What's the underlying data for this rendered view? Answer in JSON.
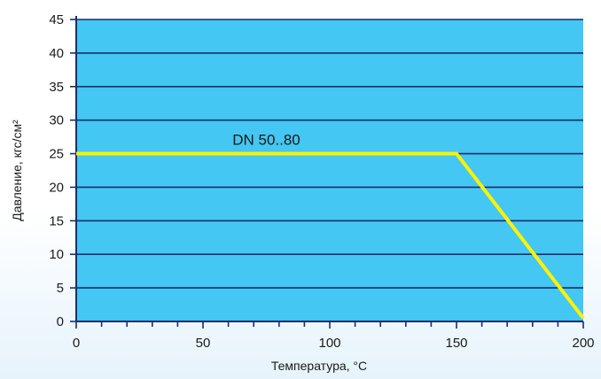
{
  "chart_data": {
    "type": "line",
    "title": "",
    "xlabel": "Температура, °С",
    "ylabel": "Давление, кгс/см²",
    "xlim": [
      0,
      200
    ],
    "ylim": [
      0,
      45
    ],
    "x_ticks": [
      0,
      50,
      100,
      150,
      200
    ],
    "y_ticks": [
      0,
      5,
      10,
      15,
      20,
      25,
      30,
      35,
      40,
      45
    ],
    "grid": "horizontal",
    "series": [
      {
        "name": "DN 50..80",
        "x": [
          0,
          150,
          200
        ],
        "y": [
          25,
          25,
          0.5
        ]
      }
    ]
  },
  "colors": {
    "plot_background": "#44c7f2",
    "line": "#fff200",
    "axis": "#1a2d6b",
    "grid": "#1a2d6b"
  }
}
